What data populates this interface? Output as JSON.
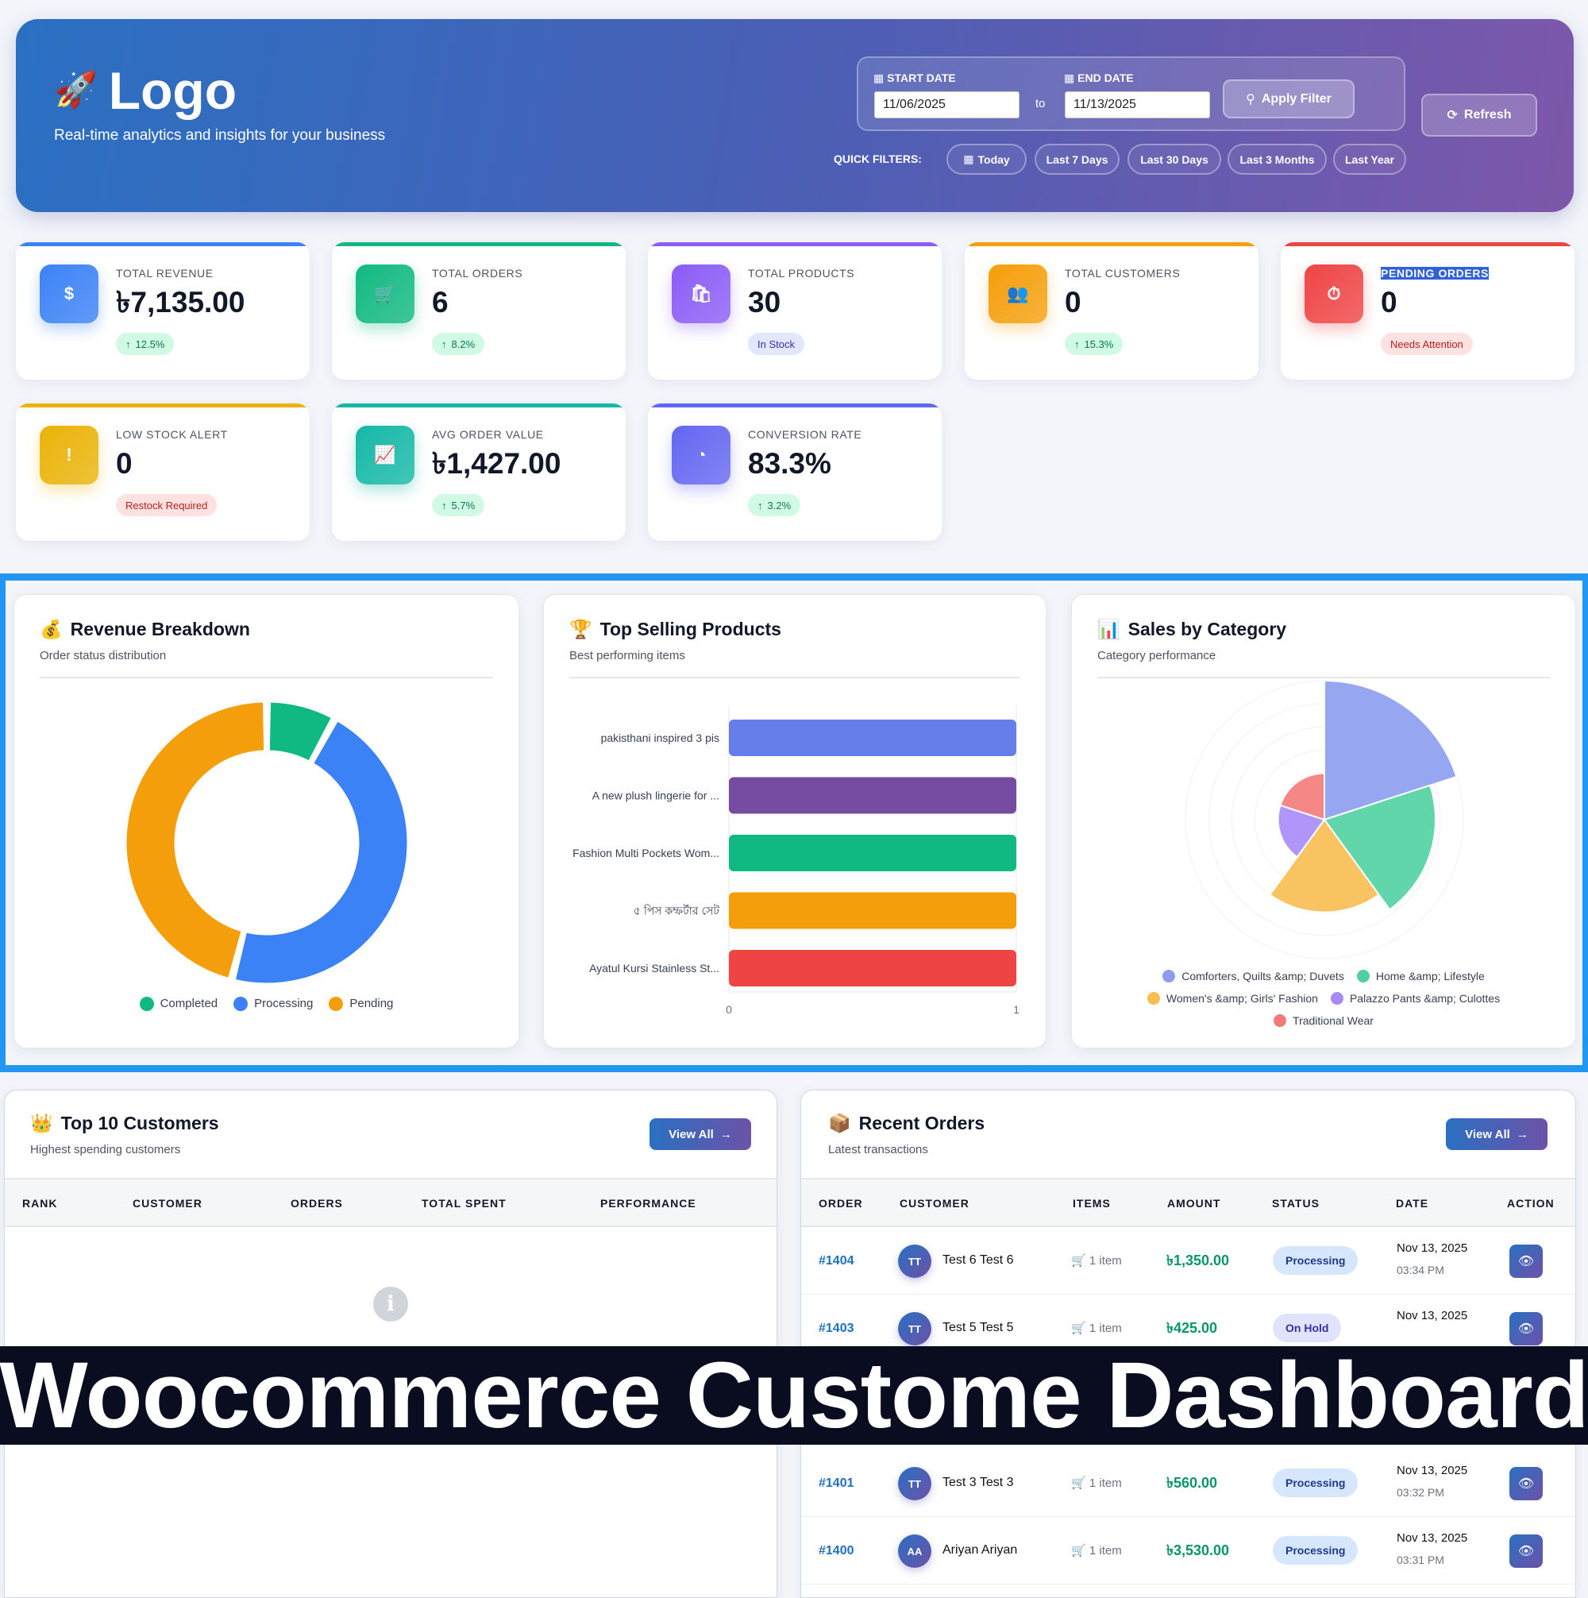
{
  "header": {
    "logo": "Logo",
    "tagline": "Real-time analytics and insights for your business",
    "start_date_label": "START DATE",
    "start_date": "11/06/2025",
    "to_label": "to",
    "end_date_label": "END DATE",
    "end_date": "11/13/2025",
    "apply_label": "Apply Filter",
    "refresh_label": "Refresh",
    "quick_filters_label": "QUICK FILTERS:",
    "quick_filters": [
      "Today",
      "Last 7 Days",
      "Last 30 Days",
      "Last 3 Months",
      "Last Year"
    ]
  },
  "stats": [
    {
      "label": "TOTAL REVENUE",
      "value": "৳7,135.00",
      "badge": "12.5%",
      "color": "#3b82f6"
    },
    {
      "label": "TOTAL ORDERS",
      "value": "6",
      "badge": "8.2%",
      "color": "#10b981"
    },
    {
      "label": "TOTAL PRODUCTS",
      "value": "30",
      "badge": "In Stock",
      "color": "#8b5cf6"
    },
    {
      "label": "TOTAL CUSTOMERS",
      "value": "0",
      "badge": "15.3%",
      "color": "#f59e0b"
    },
    {
      "label": "PENDING ORDERS",
      "value": "0",
      "badge": "Needs Attention",
      "color": "#ef4444"
    },
    {
      "label": "LOW STOCK ALERT",
      "value": "0",
      "badge": "Restock Required",
      "color": "#eab308"
    },
    {
      "label": "AVG ORDER VALUE",
      "value": "৳1,427.00",
      "badge": "5.7%",
      "color": "#14b8a6"
    },
    {
      "label": "CONVERSION RATE",
      "value": "83.3%",
      "badge": "3.2%",
      "color": "#6366f1"
    }
  ],
  "revenue_breakdown": {
    "title": "Revenue Breakdown",
    "subtitle": "Order status distribution"
  },
  "top_products": {
    "title": "Top Selling Products",
    "subtitle": "Best performing items"
  },
  "sales_category": {
    "title": "Sales by Category",
    "subtitle": "Category performance"
  },
  "chart_data": [
    {
      "type": "pie",
      "title": "Revenue Breakdown",
      "categories": [
        "Completed",
        "Processing",
        "Pending"
      ],
      "values": [
        8,
        46,
        46
      ],
      "colors": [
        "#10b981",
        "#3b82f6",
        "#f59e0b"
      ],
      "legend": "bottom"
    },
    {
      "type": "bar",
      "title": "Top Selling Products",
      "orientation": "horizontal",
      "categories": [
        "pakisthani inspired 3 pis",
        "A new plush lingerie for ...",
        "Fashion Multi Pockets Wom...",
        "৫ পিস কম্ফর্টার সেট",
        "Ayatul Kursi Stainless St..."
      ],
      "values": [
        1,
        1,
        1,
        1,
        1
      ],
      "colors": [
        "#667eea",
        "#764ba2",
        "#10b981",
        "#f59e0b",
        "#ef4444"
      ],
      "xlim": [
        0,
        1
      ],
      "xticks": [
        "0",
        "1"
      ]
    },
    {
      "type": "pie",
      "subtype": "polar-area",
      "title": "Sales by Category",
      "categories": [
        "Comforters, Quilts &amp; Duvets",
        "Home &amp; Lifestyle",
        "Women's &amp; Girls' Fashion",
        "Palazzo Pants &amp; Culottes",
        "Traditional Wear"
      ],
      "values": [
        3,
        2.4,
        2,
        1,
        1
      ],
      "max": 3,
      "colors": [
        "#8b9cf0",
        "#4fd1a1",
        "#f7bd4f",
        "#a78bfa",
        "#f47a7a"
      ],
      "legend": "bottom"
    }
  ],
  "customers": {
    "title": "Top 10 Customers",
    "subtitle": "Highest spending customers",
    "view_all": "View All",
    "columns": [
      "RANK",
      "CUSTOMER",
      "ORDERS",
      "TOTAL SPENT",
      "PERFORMANCE"
    ]
  },
  "orders": {
    "title": "Recent Orders",
    "subtitle": "Latest transactions",
    "view_all": "View All",
    "columns": [
      "ORDER",
      "CUSTOMER",
      "ITEMS",
      "AMOUNT",
      "STATUS",
      "DATE",
      "ACTION"
    ],
    "rows": [
      {
        "id": "#1404",
        "initials": "TT",
        "name": "Test 6 Test 6",
        "items": "1 item",
        "amount": "৳1,350.00",
        "status": "Processing",
        "date": "Nov 13, 2025",
        "time": "03:34 PM"
      },
      {
        "id": "#1403",
        "initials": "TT",
        "name": "Test 5 Test 5",
        "items": "1 item",
        "amount": "৳425.00",
        "status": "On Hold",
        "date": "Nov 13, 2025"
      },
      {
        "id": "#1401",
        "initials": "TT",
        "name": "Test 3 Test 3",
        "items": "1 item",
        "amount": "৳560.00",
        "status": "Processing",
        "date": "Nov 13, 2025",
        "time": "03:32 PM"
      },
      {
        "id": "#1400",
        "initials": "AA",
        "name": "Ariyan Ariyan",
        "items": "1 item",
        "amount": "৳3,530.00",
        "status": "Processing",
        "date": "Nov 13, 2025",
        "time": "03:31 PM"
      }
    ]
  },
  "banner": "Woocommerce Custome Dashboard"
}
